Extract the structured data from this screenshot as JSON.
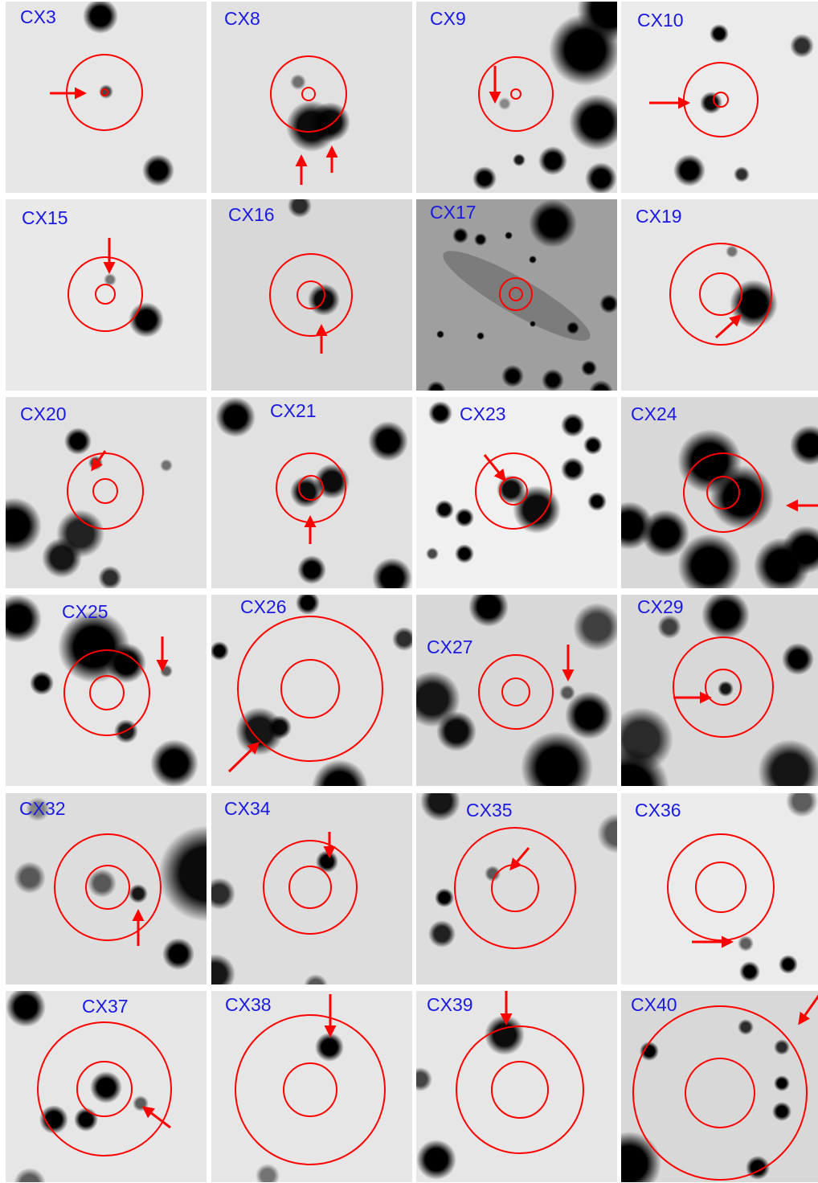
{
  "figure": {
    "panels": [
      {
        "label": "CX3"
      },
      {
        "label": "CX8"
      },
      {
        "label": "CX9"
      },
      {
        "label": "CX10"
      },
      {
        "label": "CX15"
      },
      {
        "label": "CX16"
      },
      {
        "label": "CX17"
      },
      {
        "label": "CX19"
      },
      {
        "label": "CX20"
      },
      {
        "label": "CX21"
      },
      {
        "label": "CX23"
      },
      {
        "label": "CX24"
      },
      {
        "label": "CX25"
      },
      {
        "label": "CX26"
      },
      {
        "label": "CX27"
      },
      {
        "label": "CX29"
      },
      {
        "label": "CX32"
      },
      {
        "label": "CX34"
      },
      {
        "label": "CX35"
      },
      {
        "label": "CX36"
      },
      {
        "label": "CX37"
      },
      {
        "label": "CX38"
      },
      {
        "label": "CX39"
      },
      {
        "label": "CX40"
      }
    ],
    "colors": {
      "label_text": "#1a1ae0",
      "circles_and_arrows": "#ff0000",
      "stars": "#000000",
      "sky_background": "#f0f0f0"
    }
  }
}
